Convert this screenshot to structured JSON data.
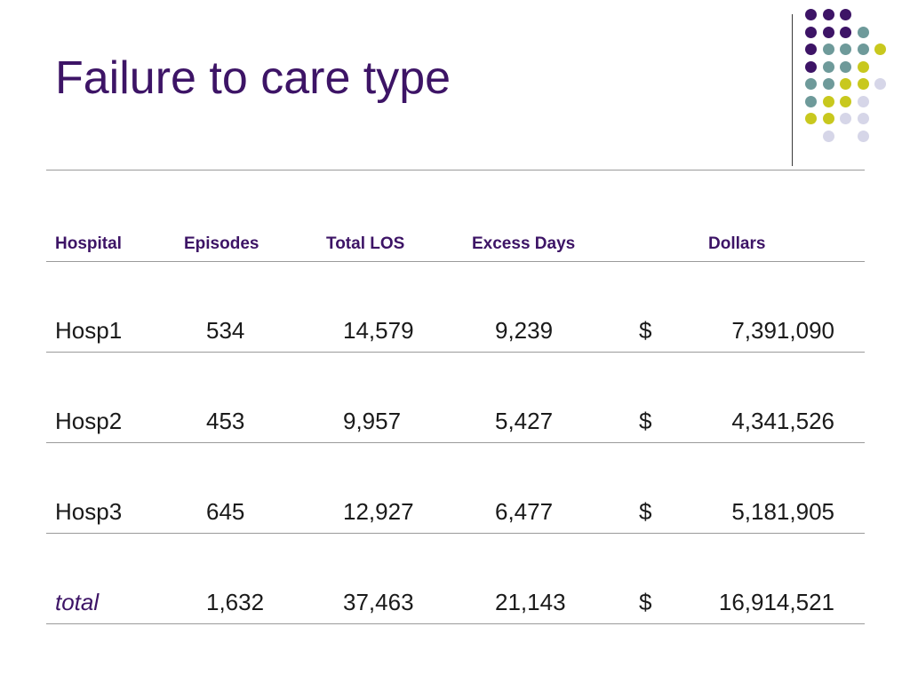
{
  "slide": {
    "title": "Failure to care type"
  },
  "colors": {
    "title": "#3d1466",
    "purple": "#3d1466",
    "teal": "#6e9a9a",
    "yellow": "#c8c81e",
    "lavender": "#d6d6e8",
    "rule": "#9a9a9a"
  },
  "dot_pattern": [
    [
      "purple",
      "purple",
      "purple",
      "",
      ""
    ],
    [
      "purple",
      "purple",
      "purple",
      "teal",
      ""
    ],
    [
      "purple",
      "teal",
      "teal",
      "teal",
      "yellow"
    ],
    [
      "purple",
      "teal",
      "teal",
      "yellow",
      ""
    ],
    [
      "teal",
      "teal",
      "yellow",
      "yellow",
      "lavender"
    ],
    [
      "teal",
      "yellow",
      "yellow",
      "lavender",
      ""
    ],
    [
      "yellow",
      "yellow",
      "lavender",
      "lavender",
      ""
    ],
    [
      "",
      "lavender",
      "",
      "lavender",
      ""
    ]
  ],
  "table": {
    "headers": {
      "hospital": "Hospital",
      "episodes": "Episodes",
      "total_los": "Total LOS",
      "excess_days": "Excess Days",
      "dollars": "Dollars"
    },
    "rows": [
      {
        "hospital": "Hosp1",
        "episodes": "534",
        "total_los": "14,579",
        "excess_days": "9,239",
        "currency": "$",
        "dollars": "7,391,090"
      },
      {
        "hospital": "Hosp2",
        "episodes": "453",
        "total_los": "9,957",
        "excess_days": "5,427",
        "currency": "$",
        "dollars": "4,341,526"
      },
      {
        "hospital": "Hosp3",
        "episodes": "645",
        "total_los": "12,927",
        "excess_days": "6,477",
        "currency": "$",
        "dollars": "5,181,905"
      }
    ],
    "total": {
      "hospital": "total",
      "episodes": "1,632",
      "total_los": "37,463",
      "excess_days": "21,143",
      "currency": "$",
      "dollars": "16,914,521"
    }
  }
}
